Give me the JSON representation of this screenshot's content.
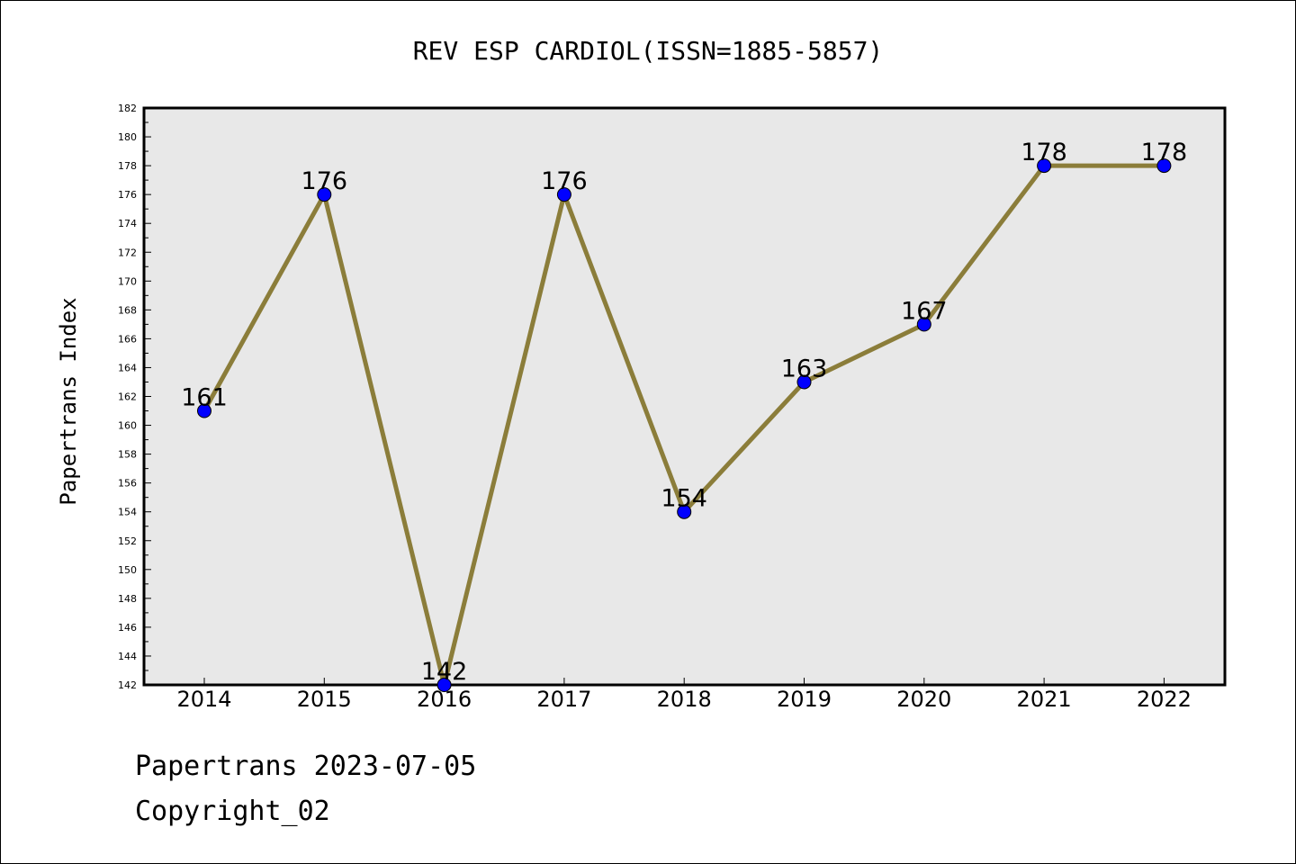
{
  "chart_data": {
    "type": "line",
    "title": "REV ESP CARDIOL(ISSN=1885-5857)",
    "xlabel": "",
    "ylabel": "Papertrans Index",
    "categories": [
      "2014",
      "2015",
      "2016",
      "2017",
      "2018",
      "2019",
      "2020",
      "2021",
      "2022"
    ],
    "series": [
      {
        "values": [
          161,
          176,
          142,
          176,
          154,
          163,
          167,
          178,
          178
        ],
        "data_labels": [
          "161",
          "176",
          "142",
          "176",
          "154",
          "163",
          "167",
          "178",
          "178"
        ]
      }
    ],
    "ylim": [
      142,
      182
    ],
    "yticks": [
      "142",
      "144",
      "146",
      "148",
      "150",
      "152",
      "154",
      "156",
      "158",
      "160",
      "162",
      "164",
      "166",
      "168",
      "170",
      "172",
      "174",
      "176",
      "178",
      "180",
      "182"
    ],
    "grid": false,
    "legend": "none",
    "line_color": "#8b7d3a",
    "marker_color": "#0000ff",
    "plot_background": "#e8e8e8"
  },
  "footer": {
    "date_line": "Papertrans 2023-07-05",
    "copyright": "Copyright_02"
  }
}
